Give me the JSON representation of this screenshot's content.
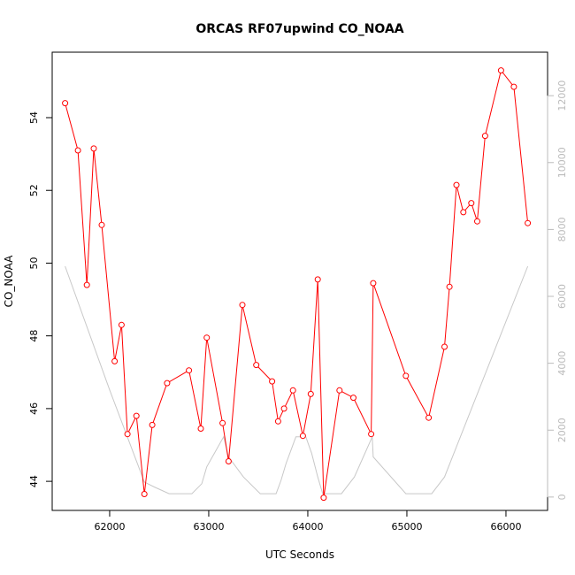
{
  "chart_data": {
    "type": "line",
    "title": "ORCAS RF07upwind CO_NOAA",
    "xlabel": "UTC Seconds",
    "ylabel": "CO_NOAA",
    "xlim": [
      61420,
      66420
    ],
    "ylim": [
      43.2,
      55.8
    ],
    "y2lim": [
      -400,
      13300
    ],
    "x_ticks": [
      "62000",
      "63000",
      "64000",
      "65000",
      "66000"
    ],
    "y_ticks": [
      "44",
      "46",
      "48",
      "50",
      "52",
      "54"
    ],
    "y2_ticks": [
      "0",
      "2000",
      "4000",
      "6000",
      "8000",
      "10000",
      "12000"
    ],
    "grid": false,
    "colors": {
      "series": "#ff0000",
      "secondary": "#c8c8c8",
      "axis": "#000000",
      "axis2": "#bbbbbb"
    },
    "series": [
      {
        "axis": "left",
        "marker": "open-circle",
        "x": [
          61550,
          61680,
          61770,
          61840,
          61920,
          62050,
          62120,
          62180,
          62270,
          62350,
          62430,
          62580,
          62800,
          62920,
          62980,
          63140,
          63200,
          63340,
          63480,
          63640,
          63700,
          63760,
          63850,
          63950,
          64030,
          64100,
          64160,
          64320,
          64460,
          64640,
          64660,
          64990,
          65220,
          65380,
          65430,
          65500,
          65570,
          65650,
          65710,
          65790,
          65950,
          66080,
          66220
        ],
        "y": [
          54.4,
          53.1,
          49.4,
          53.15,
          51.05,
          47.3,
          48.3,
          45.3,
          45.8,
          43.65,
          45.55,
          46.7,
          47.05,
          45.45,
          47.95,
          45.6,
          44.55,
          48.85,
          47.2,
          46.75,
          45.65,
          46.0,
          46.5,
          45.25,
          46.4,
          49.55,
          43.55,
          46.5,
          46.3,
          45.3,
          49.45,
          46.9,
          45.75,
          47.7,
          49.35,
          52.15,
          51.4,
          51.65,
          51.15,
          53.5,
          55.3,
          54.85,
          51.1
        ]
      },
      {
        "axis": "right",
        "marker": "none",
        "x": [
          61550,
          62000,
          62350,
          62450,
          62600,
          62830,
          62930,
          62980,
          63150,
          63200,
          63350,
          63520,
          63680,
          63730,
          63780,
          63880,
          63980,
          64040,
          64100,
          64150,
          64230,
          64340,
          64470,
          64650,
          64660,
          64990,
          65250,
          65380,
          66220
        ],
        "y": [
          6900,
          3200,
          450,
          300,
          100,
          100,
          400,
          900,
          1800,
          1200,
          600,
          100,
          100,
          500,
          1000,
          1800,
          1800,
          1300,
          600,
          100,
          100,
          100,
          600,
          1800,
          1200,
          100,
          100,
          600,
          6900
        ]
      }
    ]
  }
}
